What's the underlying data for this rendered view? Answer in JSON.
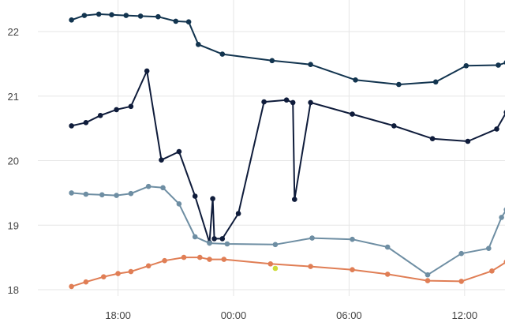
{
  "chart_data": {
    "type": "line",
    "title": "",
    "xlabel": "",
    "ylabel": "",
    "x_ticks": [
      "18:00",
      "00:00",
      "06:00",
      "12:00"
    ],
    "y_ticks": [
      18,
      19,
      20,
      21,
      22
    ],
    "ylim": [
      17.85,
      22.4
    ],
    "xlim": [
      "15:15",
      "14:10"
    ],
    "grid": true,
    "legend": "none",
    "series": [
      {
        "color": "#12344f",
        "points": [
          [
            "15:35",
            22.18
          ],
          [
            "16:15",
            22.25
          ],
          [
            "17:00",
            22.27
          ],
          [
            "17:40",
            22.26
          ],
          [
            "18:25",
            22.25
          ],
          [
            "19:10",
            22.24
          ],
          [
            "20:05",
            22.23
          ],
          [
            "21:00",
            22.16
          ],
          [
            "21:40",
            22.15
          ],
          [
            "22:10",
            21.8
          ],
          [
            "23:25",
            21.65
          ],
          [
            "02:00",
            21.55
          ],
          [
            "04:00",
            21.49
          ],
          [
            "06:20",
            21.25
          ],
          [
            "08:35",
            21.18
          ],
          [
            "10:30",
            21.22
          ],
          [
            "12:05",
            21.47
          ],
          [
            "13:45",
            21.48
          ],
          [
            "14:10",
            21.52
          ]
        ]
      },
      {
        "color": "#0f1c3b",
        "points": [
          [
            "15:35",
            20.54
          ],
          [
            "16:20",
            20.59
          ],
          [
            "17:05",
            20.7
          ],
          [
            "17:55",
            20.79
          ],
          [
            "18:40",
            20.84
          ],
          [
            "19:30",
            21.39
          ],
          [
            "20:15",
            20.01
          ],
          [
            "21:10",
            20.14
          ],
          [
            "22:00",
            19.45
          ],
          [
            "22:45",
            18.73
          ],
          [
            "22:55",
            19.41
          ],
          [
            "23:00",
            18.79
          ],
          [
            "23:25",
            18.79
          ],
          [
            "00:15",
            19.18
          ],
          [
            "01:35",
            20.91
          ],
          [
            "02:45",
            20.94
          ],
          [
            "03:05",
            20.9
          ],
          [
            "03:10",
            19.4
          ],
          [
            "04:00",
            20.9
          ],
          [
            "06:10",
            20.72
          ],
          [
            "08:20",
            20.54
          ],
          [
            "10:20",
            20.34
          ],
          [
            "12:10",
            20.3
          ],
          [
            "13:40",
            20.49
          ],
          [
            "14:10",
            20.75
          ],
          [
            "14:15",
            20.8
          ]
        ]
      },
      {
        "color": "#6e8ea3",
        "points": [
          [
            "15:35",
            19.5
          ],
          [
            "16:20",
            19.48
          ],
          [
            "17:10",
            19.47
          ],
          [
            "17:55",
            19.46
          ],
          [
            "18:40",
            19.49
          ],
          [
            "19:35",
            19.6
          ],
          [
            "20:20",
            19.58
          ],
          [
            "21:10",
            19.33
          ],
          [
            "22:00",
            18.82
          ],
          [
            "22:45",
            18.72
          ],
          [
            "23:40",
            18.71
          ],
          [
            "02:10",
            18.7
          ],
          [
            "04:05",
            18.8
          ],
          [
            "06:10",
            18.78
          ],
          [
            "08:00",
            18.66
          ],
          [
            "10:05",
            18.23
          ],
          [
            "11:50",
            18.56
          ],
          [
            "13:15",
            18.64
          ],
          [
            "13:55",
            19.12
          ],
          [
            "14:10",
            19.24
          ]
        ]
      },
      {
        "color": "#e07e55",
        "points": [
          [
            "15:35",
            18.05
          ],
          [
            "16:20",
            18.12
          ],
          [
            "17:15",
            18.2
          ],
          [
            "18:00",
            18.25
          ],
          [
            "18:40",
            18.28
          ],
          [
            "19:35",
            18.37
          ],
          [
            "20:25",
            18.45
          ],
          [
            "21:25",
            18.5
          ],
          [
            "22:15",
            18.5
          ],
          [
            "22:45",
            18.47
          ],
          [
            "23:30",
            18.47
          ],
          [
            "01:55",
            18.4
          ],
          [
            "04:00",
            18.36
          ],
          [
            "06:10",
            18.31
          ],
          [
            "08:00",
            18.24
          ],
          [
            "10:05",
            18.14
          ],
          [
            "11:50",
            18.13
          ],
          [
            "13:25",
            18.29
          ],
          [
            "14:10",
            18.43
          ]
        ]
      },
      {
        "color": "#cddc39",
        "points": [
          [
            "02:10",
            18.33
          ]
        ]
      }
    ]
  }
}
